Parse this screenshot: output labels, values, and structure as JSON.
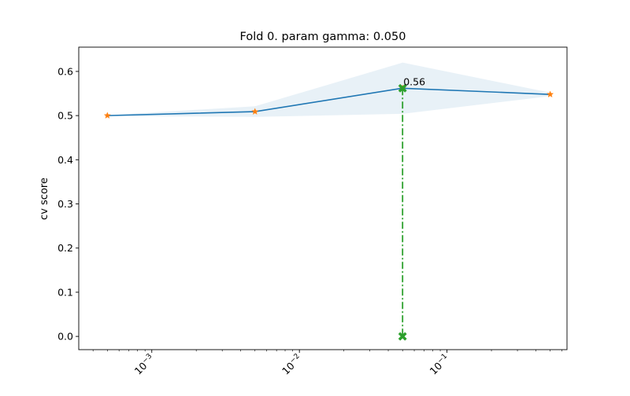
{
  "chart_data": {
    "type": "line",
    "title": "Fold 0. param gamma: 0.050",
    "xlabel": "",
    "ylabel": "cv score",
    "xscale": "log",
    "xlim": [
      0.00032,
      0.65
    ],
    "ylim": [
      -0.03,
      0.655
    ],
    "yticks": [
      0.0,
      0.1,
      0.2,
      0.3,
      0.4,
      0.5,
      0.6
    ],
    "ytick_labels": [
      "0.0",
      "0.1",
      "0.2",
      "0.3",
      "0.4",
      "0.5",
      "0.6"
    ],
    "xticks": [
      0.001,
      0.01,
      0.1
    ],
    "xtick_labels": [
      {
        "base": "10",
        "exp": "−3"
      },
      {
        "base": "10",
        "exp": "−2"
      },
      {
        "base": "10",
        "exp": "−1"
      }
    ],
    "grid": false,
    "series": [
      {
        "kind": "line",
        "x": [
          0.0005,
          0.005,
          0.05,
          0.5
        ],
        "y": [
          0.5,
          0.509,
          0.562,
          0.548
        ],
        "color": "#1f77b4",
        "marker_color": "#ff7f0e",
        "marker": "star"
      }
    ],
    "band": {
      "x": [
        0.0005,
        0.005,
        0.05,
        0.5
      ],
      "lower": [
        0.499,
        0.497,
        0.504,
        0.544
      ],
      "upper": [
        0.501,
        0.521,
        0.62,
        0.552
      ],
      "color": "#1f77b4"
    },
    "best": {
      "x": 0.05,
      "y": 0.562,
      "label": "0.56",
      "color": "#2ca02c",
      "marker": "X"
    }
  }
}
